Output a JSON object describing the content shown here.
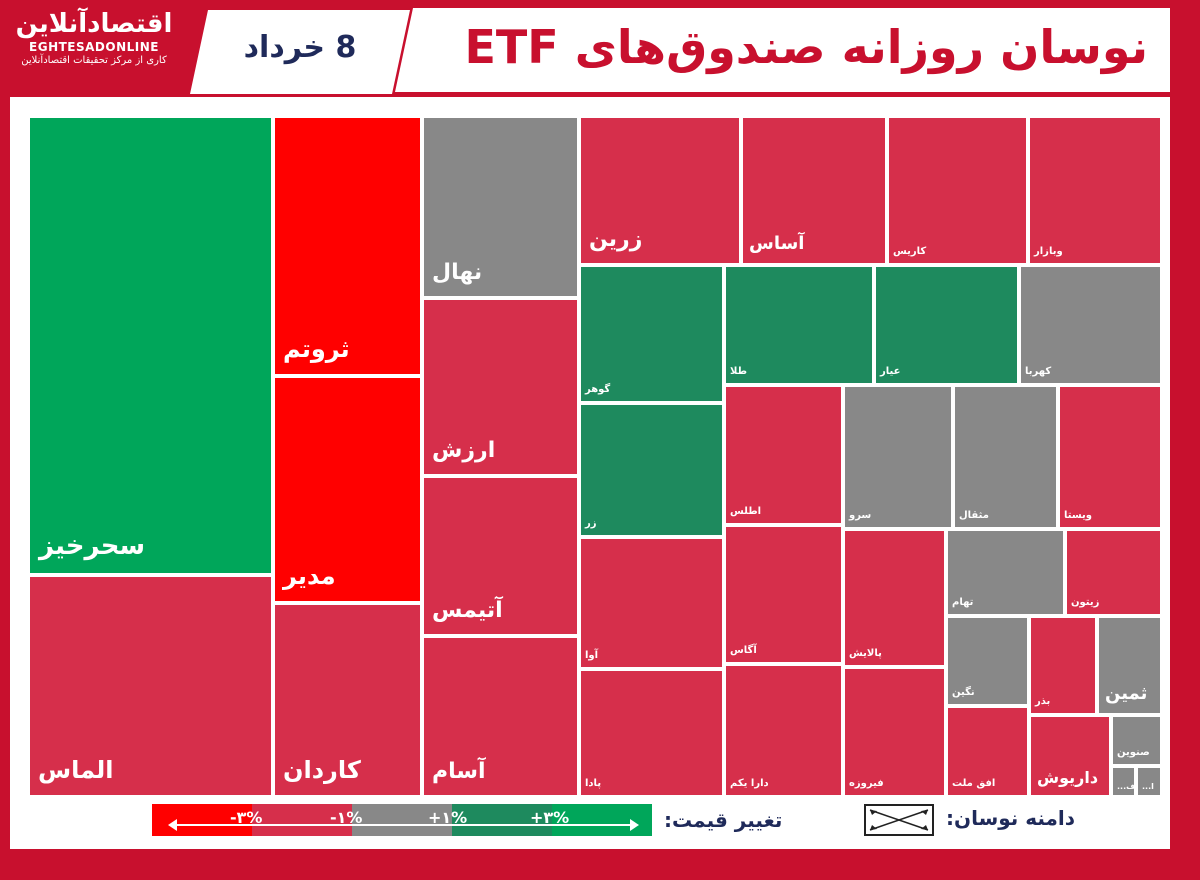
{
  "header": {
    "title": "نوسان روزانه صندوق‌های ETF",
    "date": "8 خرداد",
    "logo_fa": "اقتصادآنلاین",
    "logo_en": "EGHTESADONLINE",
    "logo_tagline": "کاری از مرکز تحقیقات اقتصادآنلاین"
  },
  "legend": {
    "title": "تغییر قیمت:",
    "range_title": "دامنه نوسان:",
    "labels": [
      "-۳%",
      "-۱%",
      "+۱%",
      "+۳%"
    ],
    "colors": [
      "#ff0000",
      "#d62f4b",
      "#888888",
      "#1e8a5e",
      "#00a65a"
    ]
  },
  "chart_data": {
    "type": "treemap",
    "color_key": {
      "strong_down": "#ff0000",
      "down": "#d62f4b",
      "neutral": "#888888",
      "up": "#1e8a5e",
      "strong_up": "#00a65a"
    },
    "items": [
      {
        "name": "سحرخیز",
        "color": "#00a65a"
      },
      {
        "name": "الماس",
        "color": "#d62f4b"
      },
      {
        "name": "ثروتم",
        "color": "#ff0000"
      },
      {
        "name": "مدیر",
        "color": "#ff0000"
      },
      {
        "name": "کاردان",
        "color": "#d62f4b"
      },
      {
        "name": "نهال",
        "color": "#888888"
      },
      {
        "name": "ارزش",
        "color": "#d62f4b"
      },
      {
        "name": "آتیمس",
        "color": "#d62f4b"
      },
      {
        "name": "آسام",
        "color": "#d62f4b"
      },
      {
        "name": "زرین",
        "color": "#d62f4b"
      },
      {
        "name": "آساس",
        "color": "#d62f4b"
      },
      {
        "name": "کاریس",
        "color": "#d62f4b"
      },
      {
        "name": "وبازار",
        "color": "#d62f4b"
      },
      {
        "name": "گوهر",
        "color": "#1e8a5e"
      },
      {
        "name": "طلا",
        "color": "#1e8a5e"
      },
      {
        "name": "عیار",
        "color": "#1e8a5e"
      },
      {
        "name": "کهربا",
        "color": "#888888"
      },
      {
        "name": "زر",
        "color": "#1e8a5e"
      },
      {
        "name": "اطلس",
        "color": "#d62f4b"
      },
      {
        "name": "سرو",
        "color": "#888888"
      },
      {
        "name": "مثقال",
        "color": "#888888"
      },
      {
        "name": "ویستا",
        "color": "#d62f4b"
      },
      {
        "name": "آوا",
        "color": "#d62f4b"
      },
      {
        "name": "آگاس",
        "color": "#d62f4b"
      },
      {
        "name": "پالایش",
        "color": "#d62f4b"
      },
      {
        "name": "تهام",
        "color": "#888888"
      },
      {
        "name": "زیتون",
        "color": "#d62f4b"
      },
      {
        "name": "پادا",
        "color": "#d62f4b"
      },
      {
        "name": "دارا یکم",
        "color": "#d62f4b"
      },
      {
        "name": "فیروزه",
        "color": "#d62f4b"
      },
      {
        "name": "نگین",
        "color": "#888888"
      },
      {
        "name": "بذر",
        "color": "#d62f4b"
      },
      {
        "name": "ثمین",
        "color": "#888888"
      },
      {
        "name": "افق ملت",
        "color": "#d62f4b"
      },
      {
        "name": "داریوش",
        "color": "#d62f4b"
      },
      {
        "name": "صنوین",
        "color": "#888888"
      },
      {
        "name": "ف...",
        "color": "#888888"
      },
      {
        "name": "ا...",
        "color": "#888888"
      }
    ]
  }
}
